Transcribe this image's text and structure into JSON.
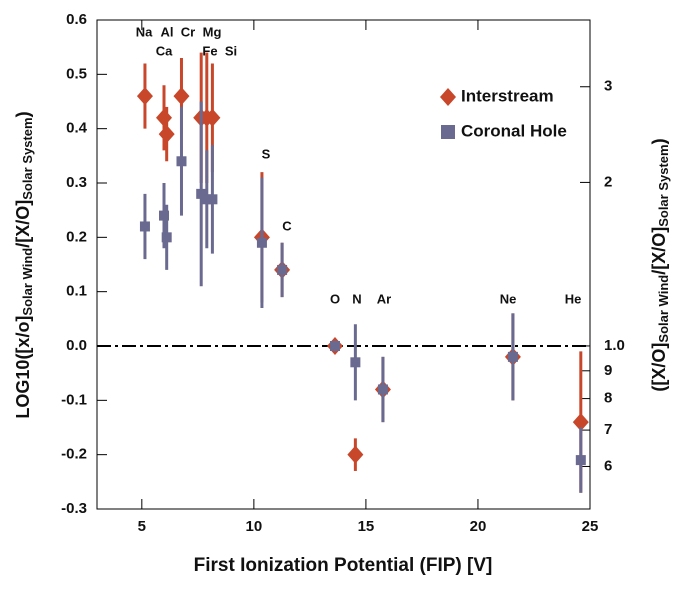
{
  "chart_data": {
    "type": "scatter",
    "x_label": "First Ionization Potential (FIP) [V]",
    "y_label": [
      "LOG10([x/o]",
      "Solar Wind",
      "/[X/O]",
      "Solar System",
      ")"
    ],
    "y2_label": [
      "([X/O]",
      "Solar Wind",
      "/[X/O]",
      "Solar System",
      ")"
    ],
    "xlim": [
      3,
      25
    ],
    "xticks": [
      5,
      10,
      15,
      20,
      25
    ],
    "ylim": [
      -0.3,
      0.6
    ],
    "yticks": [
      {
        "value": -0.3,
        "label": "-0.3"
      },
      {
        "value": -0.2,
        "label": "-0.2"
      },
      {
        "value": -0.1,
        "label": "-0.1"
      },
      {
        "value": 0,
        "label": "0.0"
      },
      0.1,
      0.2,
      0.3,
      0.4,
      0.5,
      0.6
    ],
    "y2scale": "log",
    "y2lim": [
      0.501,
      3.981
    ],
    "y2ticks": [
      {
        "value": 0.6,
        "label": "6"
      },
      {
        "value": 0.7,
        "label": "7"
      },
      {
        "value": 0.8,
        "label": "8"
      },
      {
        "value": 0.9,
        "label": "9"
      },
      {
        "value": 1,
        "label": "1.0"
      },
      2,
      3
    ],
    "reference_line": 0,
    "legend": "upper right",
    "element_labels": [
      "Na",
      "Al",
      "Cr",
      "Mg",
      "Ca",
      "Fe",
      "Si",
      "S",
      "C",
      "O",
      "N",
      "Ar",
      "Ne",
      "He"
    ],
    "x": [
      5.14,
      5.99,
      6.11,
      6.77,
      7.65,
      7.9,
      8.15,
      10.36,
      11.26,
      13.62,
      14.53,
      15.76,
      21.56,
      24.59
    ],
    "series": [
      {
        "name": "Interstream",
        "color": "#c8472a",
        "marker": "diamond",
        "values": [
          0.46,
          0.42,
          0.39,
          0.46,
          0.42,
          0.42,
          0.42,
          0.2,
          0.14,
          0.0,
          -0.2,
          -0.08,
          -0.02,
          -0.14
        ],
        "errors": [
          0.06,
          0.06,
          0.05,
          0.07,
          0.12,
          0.12,
          0.1,
          0.12,
          0.05,
          0.01,
          0.03,
          0.06,
          0.08,
          0.13
        ]
      },
      {
        "name": "Coronal Hole",
        "color": "#6a6a90",
        "marker": "square",
        "values": [
          0.22,
          0.24,
          0.2,
          0.34,
          0.28,
          0.27,
          0.27,
          0.19,
          0.14,
          0.0,
          -0.03,
          -0.08,
          -0.02,
          -0.21
        ],
        "errors": [
          0.06,
          0.06,
          0.06,
          0.1,
          0.17,
          0.09,
          0.1,
          0.12,
          0.05,
          0.01,
          0.07,
          0.06,
          0.08,
          0.06
        ]
      }
    ]
  }
}
